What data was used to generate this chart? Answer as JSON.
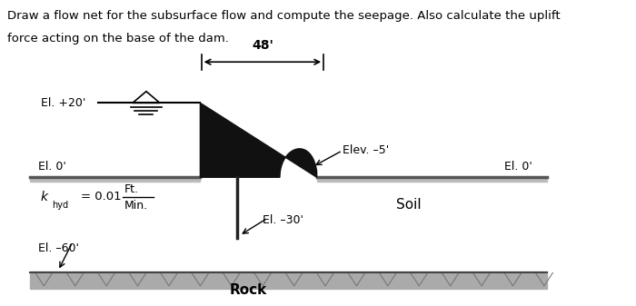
{
  "title_line1": "Draw a flow net for the subsurface flow and compute the seepage. Also calculate the uplift",
  "title_line2": "force acting on the base of the dam.",
  "bg_color": "#ffffff",
  "dimension_48_label": "48'",
  "label_el_plus20": "El. +20'",
  "label_el_0_left": "El. 0'",
  "label_el_0_right": "El. 0'",
  "label_el_minus30": "El. –30'",
  "label_el_minus60": "El. –60'",
  "label_elev_minus5": "Elev. –5'",
  "label_khyd_val": "= 0.01",
  "label_ft": "Ft.",
  "label_min": "Min.",
  "label_soil": "Soil",
  "label_rock": "Rock",
  "rock_color": "#aaaaaa",
  "ground_color": "#bbbbbb",
  "dam_color": "#111111",
  "text_color": "#000000"
}
